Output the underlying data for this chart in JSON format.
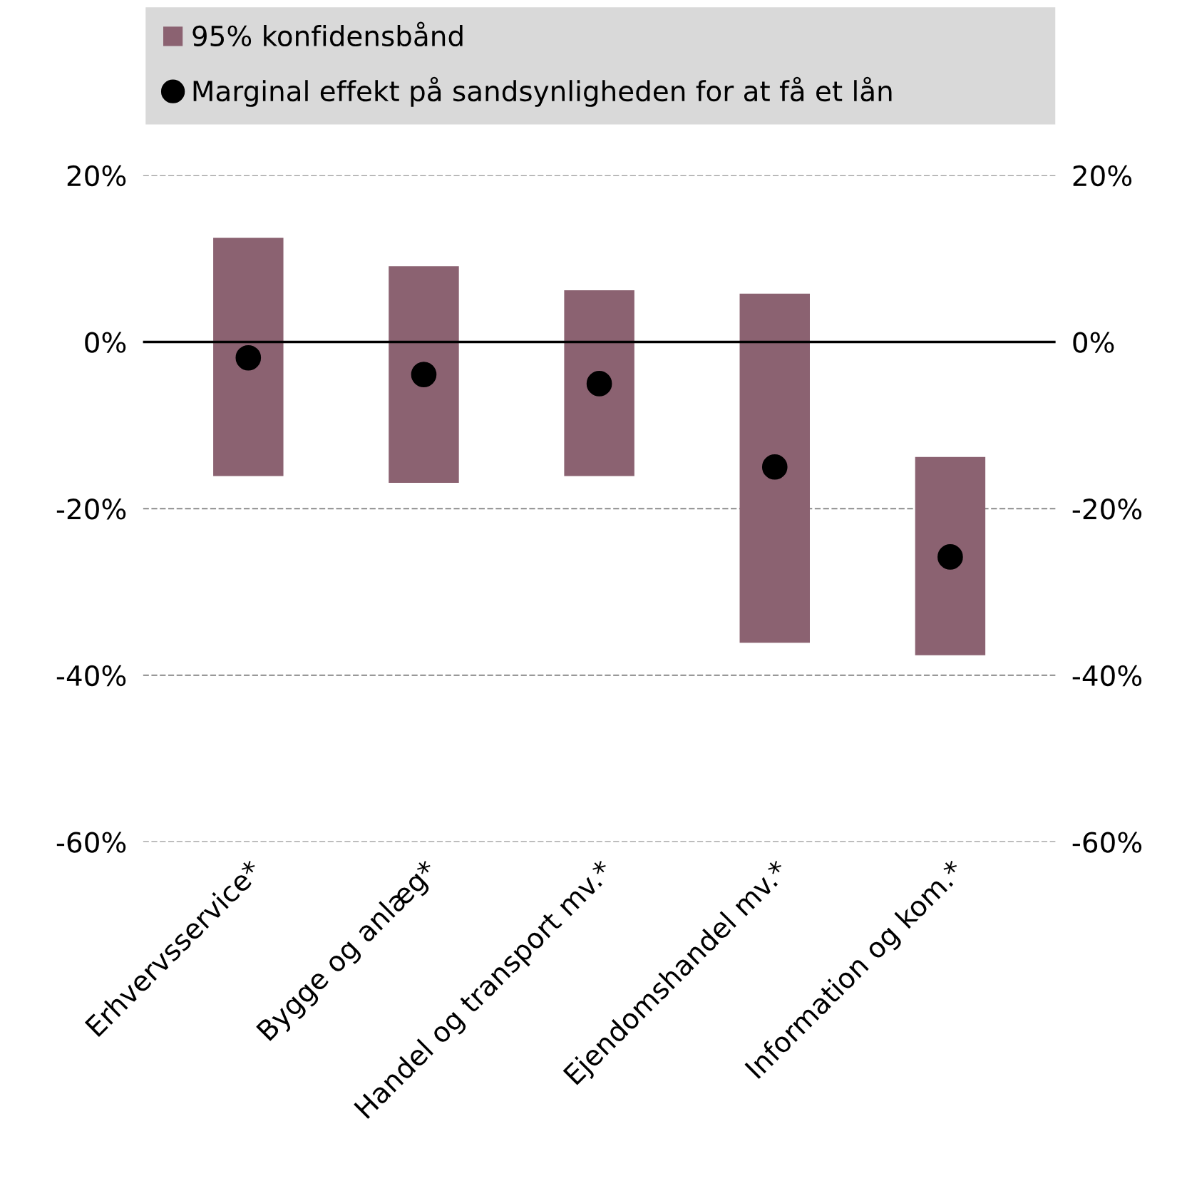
{
  "chart_data": {
    "type": "bar",
    "categories": [
      "Erhvervsservice*",
      "Bygge og anlæg*",
      "Handel og transport mv.*",
      "Ejendomshandel mv.*",
      "Information og kom.*"
    ],
    "series": [
      {
        "name": "95% konfidensbånd",
        "color": "#8b6271",
        "base": [
          -16.1,
          -16.9,
          -16.1,
          -36.1,
          -37.6
        ],
        "values": [
          28.6,
          26.0,
          22.3,
          41.9,
          23.8
        ]
      },
      {
        "type": "scatter",
        "name": "Marginal effekt på sandsynligheden for at få et lån",
        "color": "#000000",
        "marker": "circle",
        "x": [
          "Erhvervsservice*",
          "Bygge og anlæg*",
          "Handel og transport mv.*",
          "Ejendomshandel mv.*",
          "Information og kom.*"
        ],
        "values": [
          -1.9,
          -3.9,
          -5.0,
          -15.0,
          -25.8
        ]
      }
    ],
    "ylim": [
      -60,
      20
    ],
    "yticks": [
      {
        "value": -60,
        "label": "-60%"
      },
      {
        "value": -40,
        "label": "-40%"
      },
      {
        "value": -20,
        "label": "-20%"
      },
      {
        "value": 0,
        "label": "0%"
      },
      {
        "value": 20,
        "label": "20%"
      }
    ],
    "y2lim": [
      -60,
      20
    ],
    "y2ticks": [
      {
        "value": -60,
        "label": "-60%"
      },
      {
        "value": -40,
        "label": "-40%"
      },
      {
        "value": -20,
        "label": "-20%"
      },
      {
        "value": 0,
        "label": "0%"
      },
      {
        "value": 20,
        "label": "20%"
      }
    ],
    "ref_lines": [
      {
        "axis": "y",
        "value": 0,
        "color": "#000000",
        "line_style": "solid"
      }
    ],
    "grid": "y",
    "legend": "top"
  }
}
